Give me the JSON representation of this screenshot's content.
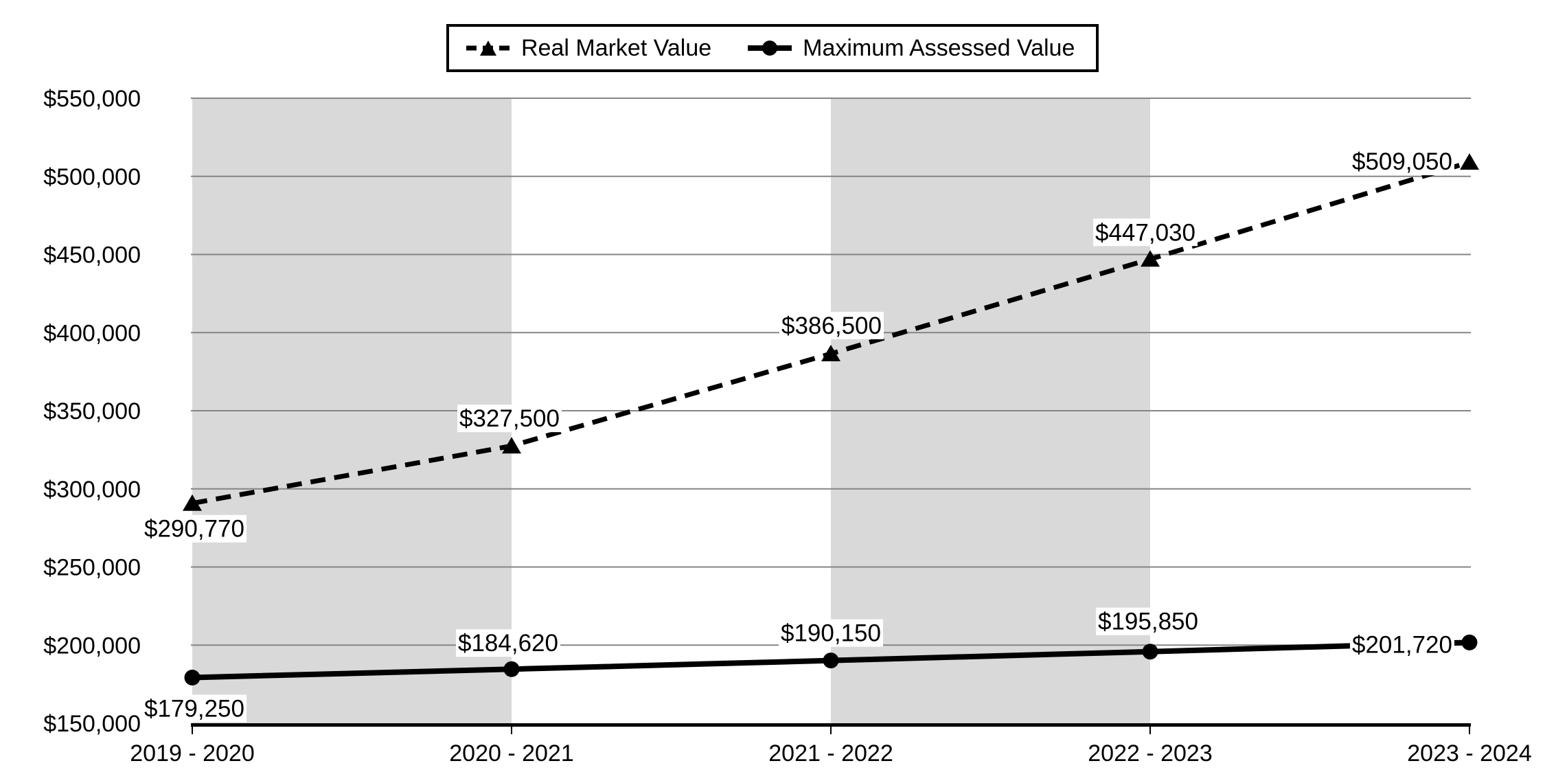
{
  "chart_data": {
    "type": "line",
    "title": "",
    "categories": [
      "2019 - 2020",
      "2020 - 2021",
      "2021 - 2022",
      "2022 - 2023",
      "2023 - 2024"
    ],
    "series": [
      {
        "name": "Real Market Value",
        "line_style": "dashed",
        "marker": "triangle",
        "color": "#000000",
        "values": [
          290770,
          327500,
          386500,
          447030,
          509050
        ],
        "labels": [
          "$290,770",
          "$327,500",
          "$386,500",
          "$447,030",
          "$509,050"
        ]
      },
      {
        "name": "Maximum Assessed Value",
        "line_style": "solid",
        "marker": "circle",
        "color": "#000000",
        "values": [
          179250,
          184620,
          190150,
          195850,
          201720
        ],
        "labels": [
          "$179,250",
          "$184,620",
          "$190,150",
          "$195,850",
          "$201,720"
        ]
      }
    ],
    "ylim": [
      150000,
      550000
    ],
    "ytick_step": 50000,
    "ytick_labels": [
      "$550,000",
      "$500,000",
      "$450,000",
      "$400,000",
      "$350,000",
      "$300,000",
      "$250,000",
      "$200,000",
      "$150,000"
    ],
    "grid": "horizontal",
    "legend_position": "top-center",
    "shaded_column_bands": [
      [
        0,
        1
      ],
      [
        2,
        3
      ]
    ],
    "colors": {
      "band": "#d9d9d9",
      "gridline": "#858585",
      "axis": "#000000",
      "background": "#ffffff",
      "label_bg": "#ffffff",
      "text": "#000000"
    }
  }
}
